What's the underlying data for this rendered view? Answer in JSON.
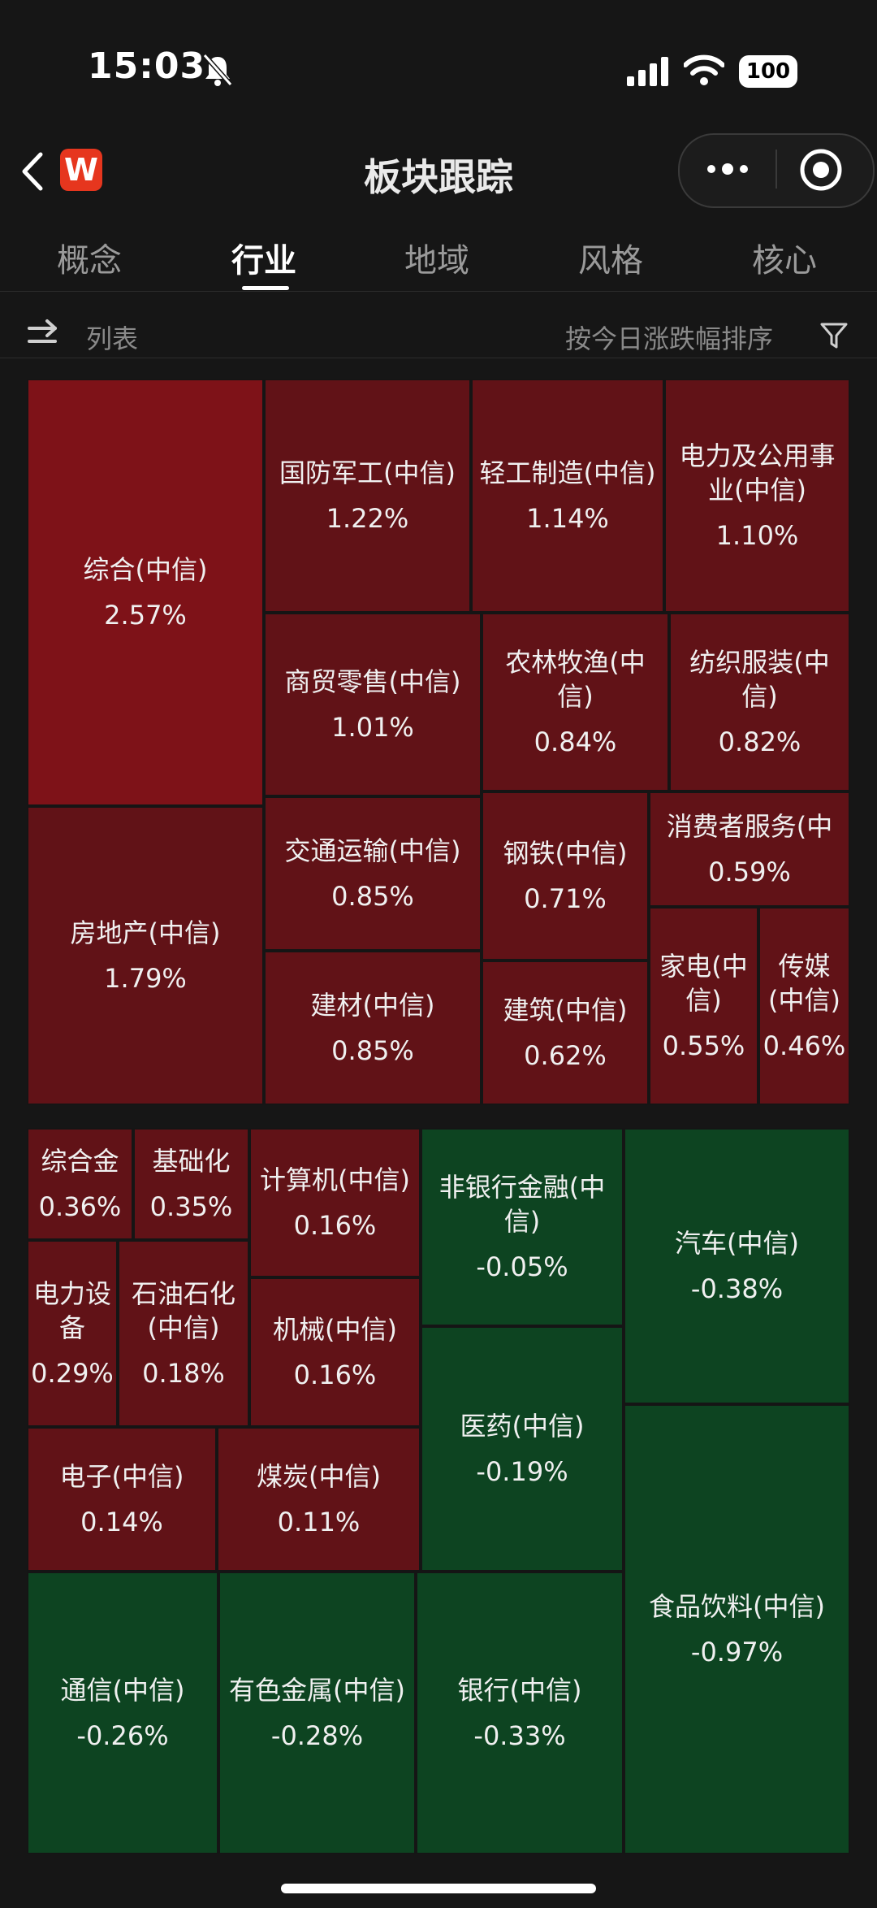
{
  "status_bar": {
    "time": "15:03",
    "battery": "100"
  },
  "nav": {
    "title": "板块跟踪",
    "app_logo": "W"
  },
  "tabs": [
    {
      "label": "概念"
    },
    {
      "label": "行业"
    },
    {
      "label": "地域"
    },
    {
      "label": "风格"
    },
    {
      "label": "核心"
    }
  ],
  "active_tab": "行业",
  "toolbar": {
    "list_label": "列表",
    "sort_label": "按今日涨跌幅排序"
  },
  "icons": [
    "bell-slash-icon",
    "signal-icon",
    "wifi-icon",
    "battery-icon",
    "back-icon",
    "more-icon",
    "target-icon",
    "swap-icon",
    "filter-icon"
  ],
  "colors": {
    "up_strong": "#7e1218",
    "up": "#611217",
    "down": "#0d4421"
  },
  "sectors": [
    {
      "name": "综合(中信)",
      "pct": "2.57%",
      "change": 2.57
    },
    {
      "name": "房地产(中信)",
      "pct": "1.79%",
      "change": 1.79
    },
    {
      "name": "国防军工(中信)",
      "pct": "1.22%",
      "change": 1.22
    },
    {
      "name": "轻工制造(中信)",
      "pct": "1.14%",
      "change": 1.14
    },
    {
      "name": "电力及公用事业(中信)",
      "pct": "1.10%",
      "change": 1.1
    },
    {
      "name": "商贸零售(中信)",
      "pct": "1.01%",
      "change": 1.01
    },
    {
      "name": "农林牧渔(中信)",
      "pct": "0.84%",
      "change": 0.84
    },
    {
      "name": "纺织服装(中信)",
      "pct": "0.82%",
      "change": 0.82
    },
    {
      "name": "交通运输(中信)",
      "pct": "0.85%",
      "change": 0.85
    },
    {
      "name": "钢铁(中信)",
      "pct": "0.71%",
      "change": 0.71
    },
    {
      "name": "消费者服务(中",
      "pct": "0.59%",
      "change": 0.59
    },
    {
      "name": "建材(中信)",
      "pct": "0.85%",
      "change": 0.85
    },
    {
      "name": "建筑(中信)",
      "pct": "0.62%",
      "change": 0.62
    },
    {
      "name": "家电(中信)",
      "pct": "0.55%",
      "change": 0.55
    },
    {
      "name": "传媒(中信)",
      "pct": "0.46%",
      "change": 0.46
    },
    {
      "name": "综合金",
      "pct": "0.36%",
      "change": 0.36
    },
    {
      "name": "基础化",
      "pct": "0.35%",
      "change": 0.35
    },
    {
      "name": "计算机(中信)",
      "pct": "0.16%",
      "change": 0.16
    },
    {
      "name": "电力设备",
      "pct": "0.29%",
      "change": 0.29
    },
    {
      "name": "石油石化(中信)",
      "pct": "0.18%",
      "change": 0.18
    },
    {
      "name": "机械(中信)",
      "pct": "0.16%",
      "change": 0.16
    },
    {
      "name": "电子(中信)",
      "pct": "0.14%",
      "change": 0.14
    },
    {
      "name": "煤炭(中信)",
      "pct": "0.11%",
      "change": 0.11
    },
    {
      "name": "非银行金融(中信)",
      "pct": "-0.05%",
      "change": -0.05
    },
    {
      "name": "汽车(中信)",
      "pct": "-0.38%",
      "change": -0.38
    },
    {
      "name": "医药(中信)",
      "pct": "-0.19%",
      "change": -0.19
    },
    {
      "name": "食品饮料(中信)",
      "pct": "-0.97%",
      "change": -0.97
    },
    {
      "name": "通信(中信)",
      "pct": "-0.26%",
      "change": -0.26
    },
    {
      "name": "有色金属(中信)",
      "pct": "-0.28%",
      "change": -0.28
    },
    {
      "name": "银行(中信)",
      "pct": "-0.33%",
      "change": -0.33
    }
  ]
}
